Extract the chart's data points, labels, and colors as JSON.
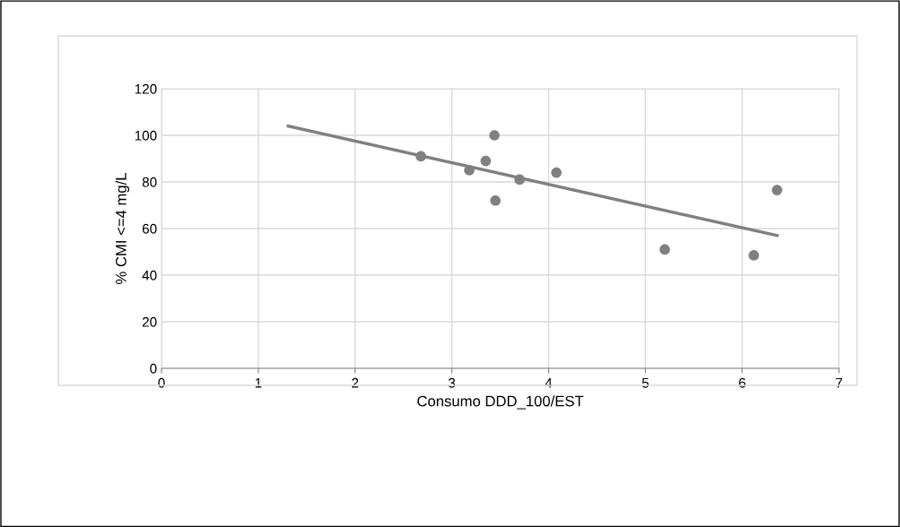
{
  "chart_data": {
    "type": "scatter",
    "xlabel": "Consumo DDD_100/EST",
    "ylabel": "% CMI <=4 mg/L",
    "series": [
      {
        "marker": "circle",
        "color": "#808080",
        "x": [
          2.68,
          3.18,
          3.35,
          3.44,
          3.45,
          3.7,
          4.08,
          5.2,
          6.12,
          6.36
        ],
        "values": [
          91,
          85,
          89,
          100,
          72,
          81,
          84,
          51,
          48.5,
          76.5
        ]
      },
      {
        "type": "line",
        "color": "#808080",
        "x": [
          1.31,
          6.36
        ],
        "values": [
          104,
          57
        ]
      }
    ],
    "xlim": [
      0,
      7
    ],
    "xticks": [
      0,
      1,
      2,
      3,
      4,
      5,
      6,
      7
    ],
    "ylim": [
      0,
      120
    ],
    "yticks": [
      0,
      20,
      40,
      60,
      80,
      100,
      120
    ],
    "grid": true
  }
}
